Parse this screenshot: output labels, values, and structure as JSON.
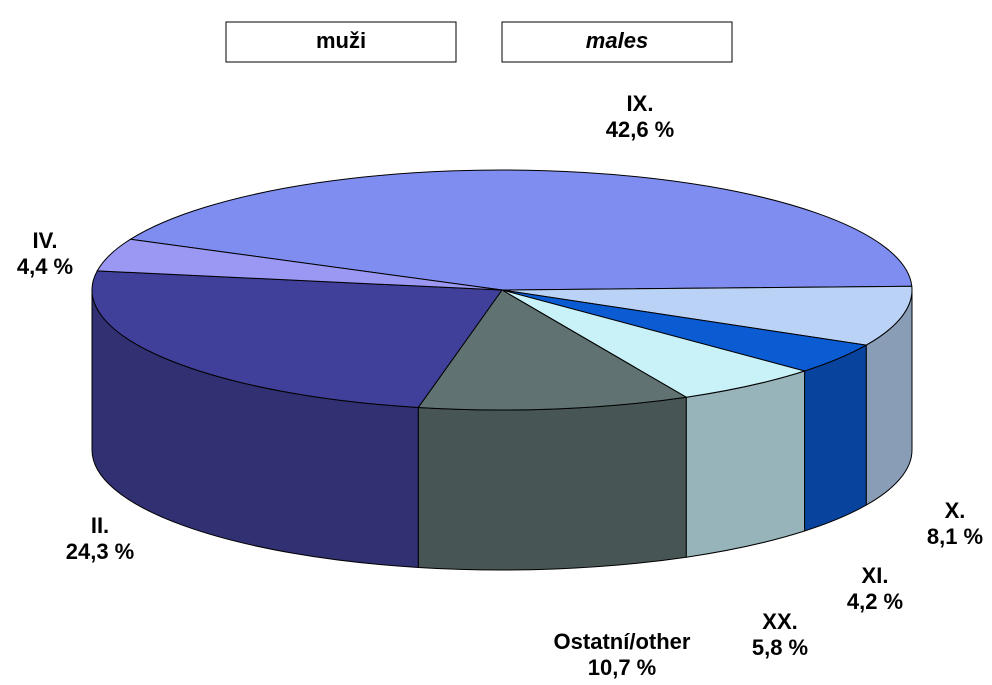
{
  "chart_data": {
    "type": "pie",
    "title": "muži",
    "subtitle": "males",
    "categories": [
      "IX.",
      "X.",
      "XI.",
      "XX.",
      "Ostatní/other",
      "II.",
      "IV."
    ],
    "values": [
      42.6,
      8.1,
      4.2,
      5.8,
      10.7,
      24.3,
      4.4
    ],
    "value_labels": [
      "42,6 %",
      "8,1 %",
      "4,2 %",
      "5,8 %",
      "10,7 %",
      "24,3 %",
      "4,4 %"
    ],
    "colors": [
      "#7f8cf0",
      "#b9d2f5",
      "#0b5bd3",
      "#c9f1f8",
      "#607272",
      "#40409a",
      "#9a98f2"
    ]
  }
}
